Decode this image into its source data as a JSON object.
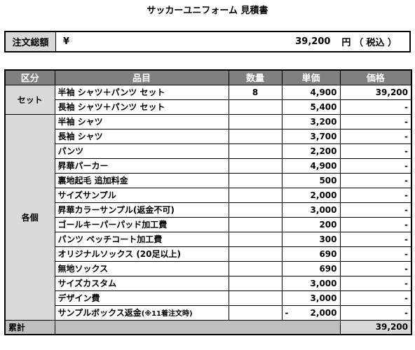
{
  "title": "サッカーユニフォーム 見積書",
  "order_total": {
    "label": "注文総額",
    "currency": "¥",
    "amount": "39,200",
    "unit": "円 （ 税込 ）"
  },
  "headers": {
    "category": "区分",
    "item": "品目",
    "qty": "数量",
    "unit_price": "単価",
    "price": "価格"
  },
  "groups": {
    "set": "セット",
    "each": "各個"
  },
  "rows": [
    {
      "item": "半袖 シャツ＋パンツ セット",
      "qty": "8",
      "unit_price": "4,900",
      "price": "39,200"
    },
    {
      "item": "長袖 シャツ＋パンツ セット",
      "qty": "",
      "unit_price": "5,400",
      "price": "-"
    },
    {
      "item": "半袖 シャツ",
      "qty": "",
      "unit_price": "3,200",
      "price": "-"
    },
    {
      "item": "長袖 シャツ",
      "qty": "",
      "unit_price": "3,700",
      "price": "-"
    },
    {
      "item": "パンツ",
      "qty": "",
      "unit_price": "2,200",
      "price": "-"
    },
    {
      "item": "昇華パーカー",
      "qty": "",
      "unit_price": "4,900",
      "price": "-"
    },
    {
      "item": "裏地起毛 追加料金",
      "qty": "",
      "unit_price": "500",
      "price": "-"
    },
    {
      "item": "サイズサンプル",
      "qty": "",
      "unit_price": "2,000",
      "price": "-"
    },
    {
      "item": "昇華カラーサンプル(返金不可)",
      "qty": "",
      "unit_price": "3,000",
      "price": "-"
    },
    {
      "item": "ゴールキーパーパッド加工費",
      "qty": "",
      "unit_price": "200",
      "price": "-"
    },
    {
      "item": "パンツ ペッチコート加工費",
      "qty": "",
      "unit_price": "300",
      "price": "-"
    },
    {
      "item": "オリジナルソックス (20足以上)",
      "qty": "",
      "unit_price": "690",
      "price": "-"
    },
    {
      "item": "無地ソックス",
      "qty": "",
      "unit_price": "690",
      "price": "-"
    },
    {
      "item": "サイズカスタム",
      "qty": "",
      "unit_price": "3,000",
      "price": "-"
    },
    {
      "item": "デザイン費",
      "qty": "",
      "unit_price": "3,000",
      "price": "-"
    },
    {
      "item": "サンプルボックス返金",
      "note": "(※11着注文時)",
      "qty": "",
      "unit_price_sign": "-",
      "unit_price": "2,000",
      "price": "-"
    }
  ],
  "summary": {
    "label": "累計",
    "value": "39,200"
  }
}
